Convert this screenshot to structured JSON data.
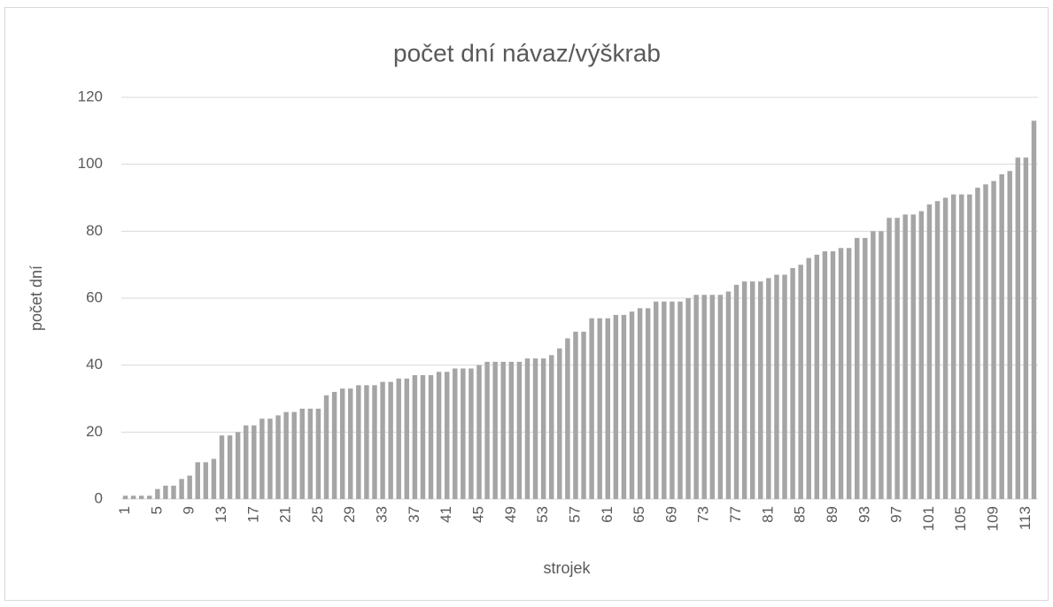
{
  "chart_data": {
    "type": "bar",
    "title": "počet dní návaz/výškrab",
    "x_label": "strojek",
    "y_label": "počet dní",
    "categories": [
      "1",
      null,
      null,
      null,
      "5",
      null,
      null,
      null,
      "9",
      null,
      null,
      null,
      "13",
      null,
      null,
      null,
      "17",
      null,
      null,
      null,
      "21",
      null,
      null,
      null,
      "25",
      null,
      null,
      null,
      "29",
      null,
      null,
      null,
      "33",
      null,
      null,
      null,
      "37",
      null,
      null,
      null,
      "41",
      null,
      null,
      null,
      "45",
      null,
      null,
      null,
      "49",
      null,
      null,
      null,
      "53",
      null,
      null,
      null,
      "57",
      null,
      null,
      null,
      "61",
      null,
      null,
      null,
      "65",
      null,
      null,
      null,
      "69",
      null,
      null,
      null,
      "73",
      null,
      null,
      null,
      "77",
      null,
      null,
      null,
      "81",
      null,
      null,
      null,
      "85",
      null,
      null,
      null,
      "89",
      null,
      null,
      null,
      "93",
      null,
      null,
      null,
      "97",
      null,
      null,
      null,
      "101",
      null,
      null,
      null,
      "105",
      null,
      null,
      null,
      "109",
      null,
      null,
      null,
      "113",
      null
    ],
    "values": [
      1,
      1,
      1,
      1,
      3,
      4,
      4,
      6,
      7,
      11,
      11,
      12,
      19,
      19,
      20,
      22,
      22,
      24,
      24,
      25,
      26,
      26,
      27,
      27,
      27,
      31,
      32,
      33,
      33,
      34,
      34,
      34,
      35,
      35,
      36,
      36,
      37,
      37,
      37,
      38,
      38,
      39,
      39,
      39,
      40,
      41,
      41,
      41,
      41,
      41,
      42,
      42,
      42,
      43,
      45,
      48,
      50,
      50,
      54,
      54,
      54,
      55,
      55,
      56,
      57,
      57,
      59,
      59,
      59,
      59,
      60,
      61,
      61,
      61,
      61,
      62,
      64,
      65,
      65,
      65,
      66,
      67,
      67,
      69,
      70,
      72,
      73,
      74,
      74,
      75,
      75,
      78,
      78,
      80,
      80,
      84,
      84,
      85,
      85,
      86,
      88,
      89,
      90,
      91,
      91,
      91,
      93,
      94,
      95,
      97,
      98,
      102,
      102,
      113
    ],
    "color": "#a5a5a5",
    "ylim": [
      0,
      120
    ],
    "yticks": [
      0,
      20,
      40,
      60,
      80,
      100,
      120
    ],
    "grid": true
  }
}
